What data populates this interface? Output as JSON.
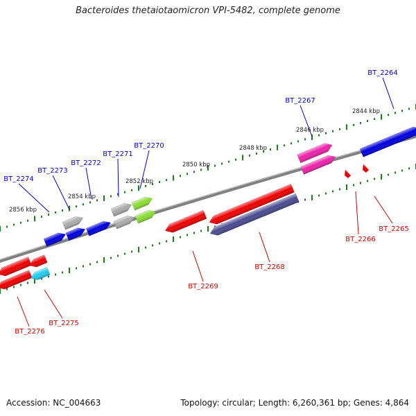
{
  "title": "Bacteroides thetaiotaomicron VPI-5482, complete genome",
  "footer": {
    "accession": "Accession: NC_004663",
    "stats": "Topology: circular; Length: 6,260,361 bp; Genes: 4,864"
  },
  "colors": {
    "forward_label": "#0000cc",
    "reverse_label": "#cc0000",
    "tick": "#1a7f1a",
    "backbone": "#808080"
  },
  "scale_labels": [
    "2844 kbp",
    "2846 kbp",
    "2848 kbp",
    "2850 kbp",
    "2852 kbp",
    "2854 kbp",
    "2856 kbp"
  ],
  "genes": [
    {
      "id": "BT_2264",
      "strand": "+",
      "color": "#0000dd"
    },
    {
      "id": "BT_2265",
      "strand": "-",
      "color": "#ee0000"
    },
    {
      "id": "BT_2266",
      "strand": "-",
      "color": "#ee0000"
    },
    {
      "id": "BT_2267",
      "strand": "+",
      "color": "#ee22aa"
    },
    {
      "id": "BT_2268",
      "strand": "-",
      "color": "#4a4a90"
    },
    {
      "id": "BT_2269",
      "strand": "-",
      "color": "#ee0000"
    },
    {
      "id": "BT_2270",
      "strand": "+",
      "color": "#88dd33"
    },
    {
      "id": "BT_2271",
      "strand": "+",
      "color": "#aaaaaa"
    },
    {
      "id": "BT_2272",
      "strand": "+",
      "color": "#0000dd"
    },
    {
      "id": "BT_2273",
      "strand": "+",
      "color": "#aaaaaa"
    },
    {
      "id": "BT_2274",
      "strand": "+",
      "color": "#0000dd"
    },
    {
      "id": "BT_2275",
      "strand": "-",
      "color": "#22ccee"
    },
    {
      "id": "BT_2276",
      "strand": "-",
      "color": "#ee0000"
    }
  ]
}
